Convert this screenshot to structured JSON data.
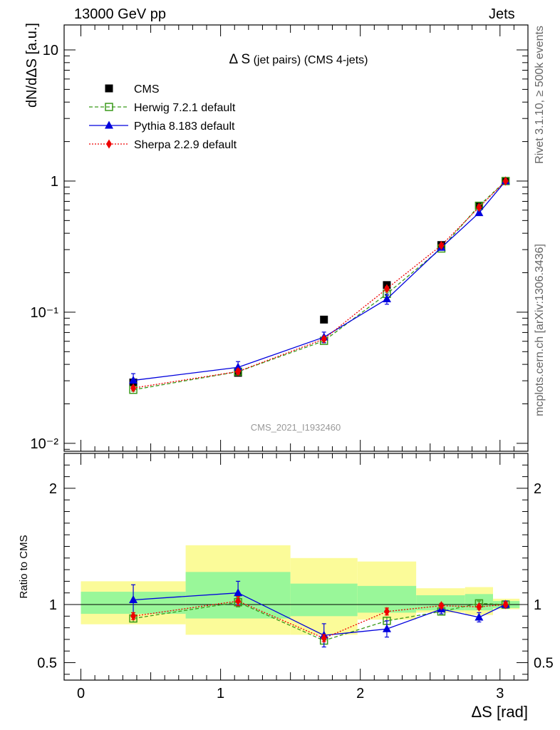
{
  "header": {
    "left": "13000 GeV pp",
    "right": "Jets"
  },
  "side_labels": {
    "rivet": "Rivet 3.1.10, ≥ 500k events",
    "mcplots": "mcplots.cern.ch [arXiv:1306.3436]"
  },
  "watermark": "CMS_2021_I1932460",
  "colors": {
    "cms": "#000000",
    "herwig": "#3a9a1a",
    "pythia": "#0000dd",
    "sherpa": "#ee0000",
    "band_inner": "#99f799",
    "band_outer": "#fbfb99"
  },
  "chart_data": [
    {
      "type": "scatter",
      "panel": "main",
      "title_main": "Δ S",
      "title_sub": " (jet pairs) (CMS 4-jets)",
      "ylabel": "dN/dΔS [a.u.]",
      "yscale": "log",
      "ylim": [
        0.0087,
        15.5
      ],
      "xlim": [
        -0.12,
        3.2
      ],
      "ytick_labels": [
        "10",
        "1",
        "10⁻¹",
        "10⁻²"
      ],
      "x": [
        0.375,
        1.125,
        1.74,
        2.19,
        2.58,
        2.85,
        3.04
      ],
      "series": [
        {
          "name": "CMS",
          "style": "square",
          "values": [
            0.0291,
            0.0345,
            0.0878,
            0.161,
            0.325,
            0.645,
            1.0
          ]
        },
        {
          "name": "Herwig 7.2.1 default",
          "style": "open-square-dashed",
          "values": [
            0.0256,
            0.0352,
            0.0605,
            0.138,
            0.306,
            0.648,
            1.0
          ],
          "errors": [
            0.0006,
            0.0012,
            0.002,
            0.004,
            0.006,
            0.01,
            0.01
          ]
        },
        {
          "name": "Pythia 8.183 default",
          "style": "triangle-solid",
          "values": [
            0.0302,
            0.038,
            0.0645,
            0.126,
            0.311,
            0.572,
            1.0
          ],
          "errors": [
            0.0038,
            0.004,
            0.006,
            0.011,
            0.012,
            0.02,
            0.02
          ]
        },
        {
          "name": "Sherpa 2.2.9 default",
          "style": "diamond-dotted",
          "values": [
            0.0264,
            0.0353,
            0.0625,
            0.151,
            0.323,
            0.63,
            1.0
          ],
          "errors": [
            0.0008,
            0.0015,
            0.002,
            0.005,
            0.007,
            0.01,
            0.01
          ]
        }
      ]
    },
    {
      "type": "scatter",
      "panel": "ratio",
      "ylabel": "Ratio to CMS",
      "xlabel": "ΔS [rad]",
      "ylim": [
        0.35,
        2.3
      ],
      "xlim": [
        -0.12,
        3.2
      ],
      "xticks": [
        0,
        1,
        2,
        3
      ],
      "ytick_labels": [
        "2",
        "1",
        "0.5"
      ],
      "bins": [
        {
          "lo": 0.0,
          "hi": 0.75,
          "inner": [
            0.92,
            1.11
          ],
          "outer": [
            0.83,
            1.2
          ]
        },
        {
          "lo": 0.75,
          "hi": 1.5,
          "inner": [
            0.88,
            1.28
          ],
          "outer": [
            0.74,
            1.51
          ]
        },
        {
          "lo": 1.5,
          "hi": 1.98,
          "inner": [
            0.9,
            1.18
          ],
          "outer": [
            0.74,
            1.4
          ]
        },
        {
          "lo": 1.98,
          "hi": 2.4,
          "inner": [
            0.93,
            1.16
          ],
          "outer": [
            0.87,
            1.37
          ]
        },
        {
          "lo": 2.4,
          "hi": 2.75,
          "inner": [
            0.95,
            1.08
          ],
          "outer": [
            0.93,
            1.14
          ]
        },
        {
          "lo": 2.75,
          "hi": 2.95,
          "inner": [
            0.95,
            1.09
          ],
          "outer": [
            0.91,
            1.15
          ]
        },
        {
          "lo": 2.95,
          "hi": 3.14,
          "inner": [
            0.97,
            1.03
          ],
          "outer": [
            0.96,
            1.05
          ]
        }
      ],
      "x": [
        0.375,
        1.125,
        1.74,
        2.19,
        2.58,
        2.85,
        3.04
      ],
      "series": [
        {
          "name": "Herwig 7.2.1 default",
          "style": "open-square-dashed",
          "values": [
            0.88,
            1.02,
            0.69,
            0.86,
            0.94,
            1.01,
            1.0
          ],
          "errors": [
            0.03,
            0.04,
            0.03,
            0.03,
            0.02,
            0.02,
            0.02
          ]
        },
        {
          "name": "Pythia 8.183 default",
          "style": "triangle-solid",
          "values": [
            1.04,
            1.1,
            0.735,
            0.79,
            0.96,
            0.89,
            1.0
          ],
          "errors": [
            0.13,
            0.1,
            0.1,
            0.07,
            0.04,
            0.04,
            0.03
          ]
        },
        {
          "name": "Sherpa 2.2.9 default",
          "style": "diamond-dotted",
          "values": [
            0.9,
            1.03,
            0.71,
            0.94,
            0.99,
            0.98,
            1.0
          ],
          "errors": [
            0.03,
            0.04,
            0.03,
            0.03,
            0.02,
            0.02,
            0.02
          ]
        }
      ]
    }
  ]
}
